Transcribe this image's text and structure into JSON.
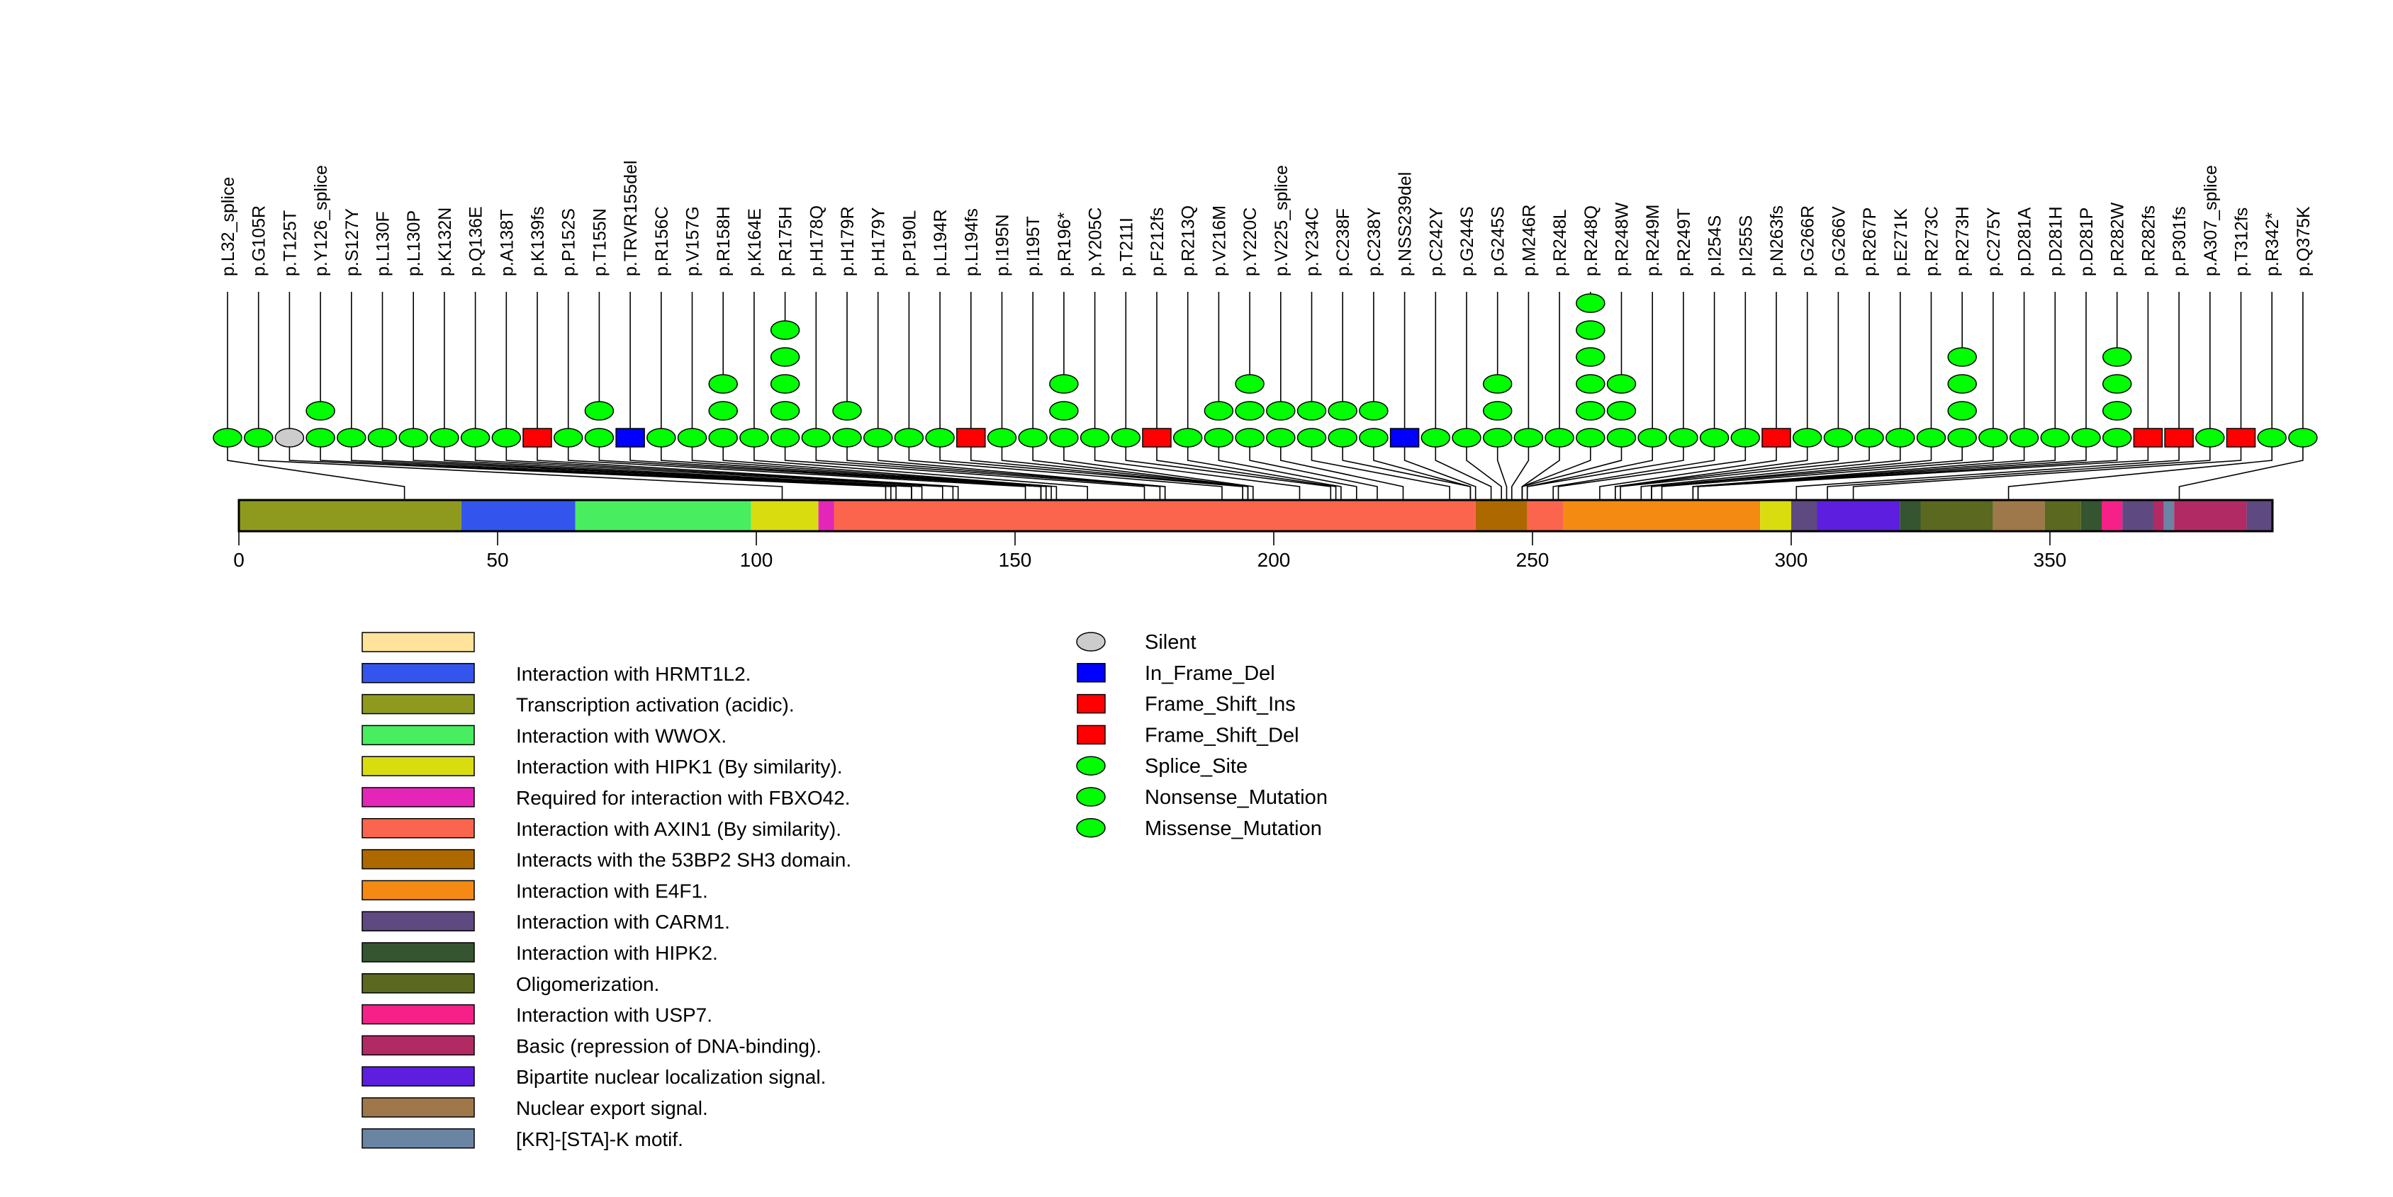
{
  "chart_data": {
    "type": "lollipop",
    "title": "",
    "protein_length": 393,
    "xlabel": "",
    "xlim": [
      0,
      393
    ],
    "x_ticks": [
      0,
      50,
      100,
      150,
      200,
      250,
      300,
      350
    ],
    "x_tick_labels": [
      "0",
      "50",
      "100",
      "150",
      "200",
      "250",
      "300",
      "350"
    ],
    "mutation_types": {
      "Silent": {
        "shape": "ellipse",
        "color": "#cccccc"
      },
      "In_Frame_Del": {
        "shape": "square",
        "color": "#0000ff"
      },
      "Frame_Shift_Ins": {
        "shape": "square",
        "color": "#ff0000"
      },
      "Frame_Shift_Del": {
        "shape": "square",
        "color": "#ff0000"
      },
      "Splice_Site": {
        "shape": "ellipse",
        "color": "#00ff00"
      },
      "Nonsense_Mutation": {
        "shape": "ellipse",
        "color": "#00ff00"
      },
      "Missense_Mutation": {
        "shape": "ellipse",
        "color": "#00ff00"
      }
    },
    "mutations": [
      {
        "label": "p.L32_splice",
        "pos": 32,
        "type": "Splice_Site",
        "count": 1
      },
      {
        "label": "p.G105R",
        "pos": 105,
        "type": "Missense_Mutation",
        "count": 1
      },
      {
        "label": "p.T125T",
        "pos": 125,
        "type": "Silent",
        "count": 1
      },
      {
        "label": "p.Y126_splice",
        "pos": 126,
        "type": "Splice_Site",
        "count": 2
      },
      {
        "label": "p.S127Y",
        "pos": 127,
        "type": "Missense_Mutation",
        "count": 1
      },
      {
        "label": "p.L130F",
        "pos": 130,
        "type": "Missense_Mutation",
        "count": 1
      },
      {
        "label": "p.L130P",
        "pos": 130,
        "type": "Missense_Mutation",
        "count": 1
      },
      {
        "label": "p.K132N",
        "pos": 132,
        "type": "Missense_Mutation",
        "count": 1
      },
      {
        "label": "p.Q136E",
        "pos": 136,
        "type": "Missense_Mutation",
        "count": 1
      },
      {
        "label": "p.A138T",
        "pos": 138,
        "type": "Missense_Mutation",
        "count": 1
      },
      {
        "label": "p.K139fs",
        "pos": 139,
        "type": "Frame_Shift_Del",
        "count": 1
      },
      {
        "label": "p.P152S",
        "pos": 152,
        "type": "Missense_Mutation",
        "count": 1
      },
      {
        "label": "p.T155N",
        "pos": 155,
        "type": "Missense_Mutation",
        "count": 2
      },
      {
        "label": "p.TRVR155del",
        "pos": 155,
        "type": "In_Frame_Del",
        "count": 1
      },
      {
        "label": "p.R156C",
        "pos": 156,
        "type": "Missense_Mutation",
        "count": 1
      },
      {
        "label": "p.V157G",
        "pos": 157,
        "type": "Missense_Mutation",
        "count": 1
      },
      {
        "label": "p.R158H",
        "pos": 158,
        "type": "Missense_Mutation",
        "count": 3
      },
      {
        "label": "p.K164E",
        "pos": 164,
        "type": "Missense_Mutation",
        "count": 1
      },
      {
        "label": "p.R175H",
        "pos": 175,
        "type": "Missense_Mutation",
        "count": 5
      },
      {
        "label": "p.H178Q",
        "pos": 178,
        "type": "Missense_Mutation",
        "count": 1
      },
      {
        "label": "p.H179R",
        "pos": 179,
        "type": "Missense_Mutation",
        "count": 2
      },
      {
        "label": "p.H179Y",
        "pos": 179,
        "type": "Missense_Mutation",
        "count": 1
      },
      {
        "label": "p.P190L",
        "pos": 190,
        "type": "Missense_Mutation",
        "count": 1
      },
      {
        "label": "p.L194R",
        "pos": 194,
        "type": "Missense_Mutation",
        "count": 1
      },
      {
        "label": "p.L194fs",
        "pos": 194,
        "type": "Frame_Shift_Del",
        "count": 1
      },
      {
        "label": "p.I195N",
        "pos": 195,
        "type": "Missense_Mutation",
        "count": 1
      },
      {
        "label": "p.I195T",
        "pos": 195,
        "type": "Missense_Mutation",
        "count": 1
      },
      {
        "label": "p.R196*",
        "pos": 196,
        "type": "Nonsense_Mutation",
        "count": 3
      },
      {
        "label": "p.Y205C",
        "pos": 205,
        "type": "Missense_Mutation",
        "count": 1
      },
      {
        "label": "p.T211I",
        "pos": 211,
        "type": "Missense_Mutation",
        "count": 1
      },
      {
        "label": "p.F212fs",
        "pos": 212,
        "type": "Frame_Shift_Ins",
        "count": 1
      },
      {
        "label": "p.R213Q",
        "pos": 213,
        "type": "Missense_Mutation",
        "count": 1
      },
      {
        "label": "p.V216M",
        "pos": 216,
        "type": "Missense_Mutation",
        "count": 2
      },
      {
        "label": "p.Y220C",
        "pos": 220,
        "type": "Missense_Mutation",
        "count": 3
      },
      {
        "label": "p.V225_splice",
        "pos": 225,
        "type": "Splice_Site",
        "count": 2
      },
      {
        "label": "p.Y234C",
        "pos": 234,
        "type": "Missense_Mutation",
        "count": 2
      },
      {
        "label": "p.C238F",
        "pos": 238,
        "type": "Missense_Mutation",
        "count": 2
      },
      {
        "label": "p.C238Y",
        "pos": 238,
        "type": "Missense_Mutation",
        "count": 2
      },
      {
        "label": "p.NSS239del",
        "pos": 239,
        "type": "In_Frame_Del",
        "count": 1
      },
      {
        "label": "p.C242Y",
        "pos": 242,
        "type": "Missense_Mutation",
        "count": 1
      },
      {
        "label": "p.G244S",
        "pos": 244,
        "type": "Missense_Mutation",
        "count": 1
      },
      {
        "label": "p.G245S",
        "pos": 245,
        "type": "Missense_Mutation",
        "count": 3
      },
      {
        "label": "p.M246R",
        "pos": 246,
        "type": "Missense_Mutation",
        "count": 1
      },
      {
        "label": "p.R248L",
        "pos": 248,
        "type": "Missense_Mutation",
        "count": 1
      },
      {
        "label": "p.R248Q",
        "pos": 248,
        "type": "Missense_Mutation",
        "count": 6
      },
      {
        "label": "p.R248W",
        "pos": 248,
        "type": "Missense_Mutation",
        "count": 3
      },
      {
        "label": "p.R249M",
        "pos": 249,
        "type": "Missense_Mutation",
        "count": 1
      },
      {
        "label": "p.R249T",
        "pos": 249,
        "type": "Missense_Mutation",
        "count": 1
      },
      {
        "label": "p.I254S",
        "pos": 254,
        "type": "Missense_Mutation",
        "count": 1
      },
      {
        "label": "p.I255S",
        "pos": 255,
        "type": "Missense_Mutation",
        "count": 1
      },
      {
        "label": "p.N263fs",
        "pos": 263,
        "type": "Frame_Shift_Del",
        "count": 1
      },
      {
        "label": "p.G266R",
        "pos": 266,
        "type": "Missense_Mutation",
        "count": 1
      },
      {
        "label": "p.G266V",
        "pos": 266,
        "type": "Missense_Mutation",
        "count": 1
      },
      {
        "label": "p.R267P",
        "pos": 267,
        "type": "Missense_Mutation",
        "count": 1
      },
      {
        "label": "p.E271K",
        "pos": 271,
        "type": "Missense_Mutation",
        "count": 1
      },
      {
        "label": "p.R273C",
        "pos": 273,
        "type": "Missense_Mutation",
        "count": 1
      },
      {
        "label": "p.R273H",
        "pos": 273,
        "type": "Missense_Mutation",
        "count": 4
      },
      {
        "label": "p.C275Y",
        "pos": 275,
        "type": "Missense_Mutation",
        "count": 1
      },
      {
        "label": "p.D281A",
        "pos": 281,
        "type": "Missense_Mutation",
        "count": 1
      },
      {
        "label": "p.D281H",
        "pos": 281,
        "type": "Missense_Mutation",
        "count": 1
      },
      {
        "label": "p.D281P",
        "pos": 281,
        "type": "Missense_Mutation",
        "count": 1
      },
      {
        "label": "p.R282W",
        "pos": 282,
        "type": "Missense_Mutation",
        "count": 4
      },
      {
        "label": "p.R282fs",
        "pos": 282,
        "type": "Frame_Shift_Del",
        "count": 1
      },
      {
        "label": "p.P301fs",
        "pos": 301,
        "type": "Frame_Shift_Del",
        "count": 1
      },
      {
        "label": "p.A307_splice",
        "pos": 307,
        "type": "Splice_Site",
        "count": 1
      },
      {
        "label": "p.T312fs",
        "pos": 312,
        "type": "Frame_Shift_Del",
        "count": 1
      },
      {
        "label": "p.R342*",
        "pos": 342,
        "type": "Nonsense_Mutation",
        "count": 1
      },
      {
        "label": "p.Q375K",
        "pos": 375,
        "type": "Missense_Mutation",
        "count": 1
      }
    ],
    "domains": [
      {
        "start": 0,
        "end": 43,
        "name": "Transcription activation (acidic).",
        "color": "#8e9a1e"
      },
      {
        "start": 43,
        "end": 65,
        "name": "Interaction with HRMT1L2.",
        "color": "#3355ee"
      },
      {
        "start": 65,
        "end": 99,
        "name": "Interaction with WWOX.",
        "color": "#48ee60"
      },
      {
        "start": 99,
        "end": 112,
        "name": "Interaction with HIPK1 (By similarity).",
        "color": "#d9dd10"
      },
      {
        "start": 112,
        "end": 115,
        "name": "Required for interaction with FBXO42.",
        "color": "#e326b8"
      },
      {
        "start": 115,
        "end": 239,
        "name": "Interaction with AXIN1 (By similarity).",
        "color": "#fb654e"
      },
      {
        "start": 239,
        "end": 249,
        "name": "Interacts with the 53BP2 SH3 domain.",
        "color": "#ad6800"
      },
      {
        "start": 249,
        "end": 256,
        "name": "Interaction with AXIN1 (By similarity).",
        "color": "#fb654e"
      },
      {
        "start": 256,
        "end": 294,
        "name": "Interaction with E4F1.",
        "color": "#f48a12"
      },
      {
        "start": 294,
        "end": 300,
        "name": "Interaction with HIPK1 (By similarity).",
        "color": "#d9dd10"
      },
      {
        "start": 300,
        "end": 305,
        "name": "Interaction with CARM1.",
        "color": "#5e4a80"
      },
      {
        "start": 305,
        "end": 321,
        "name": "Bipartite nuclear localization signal.",
        "color": "#5d1ee0"
      },
      {
        "start": 321,
        "end": 325,
        "name": "Interaction with HIPK2.",
        "color": "#345530"
      },
      {
        "start": 325,
        "end": 339,
        "name": "Oligomerization.",
        "color": "#5a6820"
      },
      {
        "start": 339,
        "end": 349,
        "name": "Nuclear export signal.",
        "color": "#9e774a"
      },
      {
        "start": 349,
        "end": 356,
        "name": "Oligomerization.",
        "color": "#5a6820"
      },
      {
        "start": 356,
        "end": 360,
        "name": "Interaction with HIPK2.",
        "color": "#345530"
      },
      {
        "start": 360,
        "end": 364,
        "name": "Interaction with USP7.",
        "color": "#f72088"
      },
      {
        "start": 364,
        "end": 370,
        "name": "Interaction with CARM1.",
        "color": "#5e4a80"
      },
      {
        "start": 370,
        "end": 372,
        "name": "Basic (repression of DNA-binding).",
        "color": "#b22a64"
      },
      {
        "start": 372,
        "end": 374,
        "name": "[KR]-[STA]-K motif.",
        "color": "#6a84a4"
      },
      {
        "start": 374,
        "end": 388,
        "name": "Basic (repression of DNA-binding).",
        "color": "#b22a64"
      },
      {
        "start": 388,
        "end": 393,
        "name": "Interaction with CARM1.",
        "color": "#5e4a80"
      }
    ],
    "domain_legend": [
      {
        "label": "",
        "color": "#ffe39b"
      },
      {
        "label": "Interaction with HRMT1L2.",
        "color": "#3355ee"
      },
      {
        "label": "Transcription activation (acidic).",
        "color": "#8e9a1e"
      },
      {
        "label": "Interaction with WWOX.",
        "color": "#48ee60"
      },
      {
        "label": "Interaction with HIPK1 (By similarity).",
        "color": "#d9dd10"
      },
      {
        "label": "Required for interaction with FBXO42.",
        "color": "#e326b8"
      },
      {
        "label": "Interaction with AXIN1 (By similarity).",
        "color": "#fb654e"
      },
      {
        "label": "Interacts with the 53BP2 SH3 domain.",
        "color": "#ad6800"
      },
      {
        "label": "Interaction with E4F1.",
        "color": "#f48a12"
      },
      {
        "label": "Interaction with CARM1.",
        "color": "#5e4a80"
      },
      {
        "label": "Interaction with HIPK2.",
        "color": "#345530"
      },
      {
        "label": "Oligomerization.",
        "color": "#5a6820"
      },
      {
        "label": "Interaction with USP7.",
        "color": "#f72088"
      },
      {
        "label": "Basic (repression of DNA-binding).",
        "color": "#b22a64"
      },
      {
        "label": "Bipartite nuclear localization signal.",
        "color": "#5d1ee0"
      },
      {
        "label": "Nuclear export signal.",
        "color": "#9e774a"
      },
      {
        "label": "[KR]-[STA]-K motif.",
        "color": "#6a84a4"
      }
    ],
    "mutation_legend": [
      {
        "label": "Silent",
        "shape": "ellipse",
        "color": "#cccccc"
      },
      {
        "label": "In_Frame_Del",
        "shape": "square",
        "color": "#0000ff"
      },
      {
        "label": "Frame_Shift_Ins",
        "shape": "square",
        "color": "#ff0000"
      },
      {
        "label": "Frame_Shift_Del",
        "shape": "square",
        "color": "#ff0000"
      },
      {
        "label": "Splice_Site",
        "shape": "ellipse",
        "color": "#00ff00"
      },
      {
        "label": "Nonsense_Mutation",
        "shape": "ellipse",
        "color": "#00ff00"
      },
      {
        "label": "Missense_Mutation",
        "shape": "ellipse",
        "color": "#00ff00"
      }
    ],
    "legend_placement": "bottom"
  }
}
